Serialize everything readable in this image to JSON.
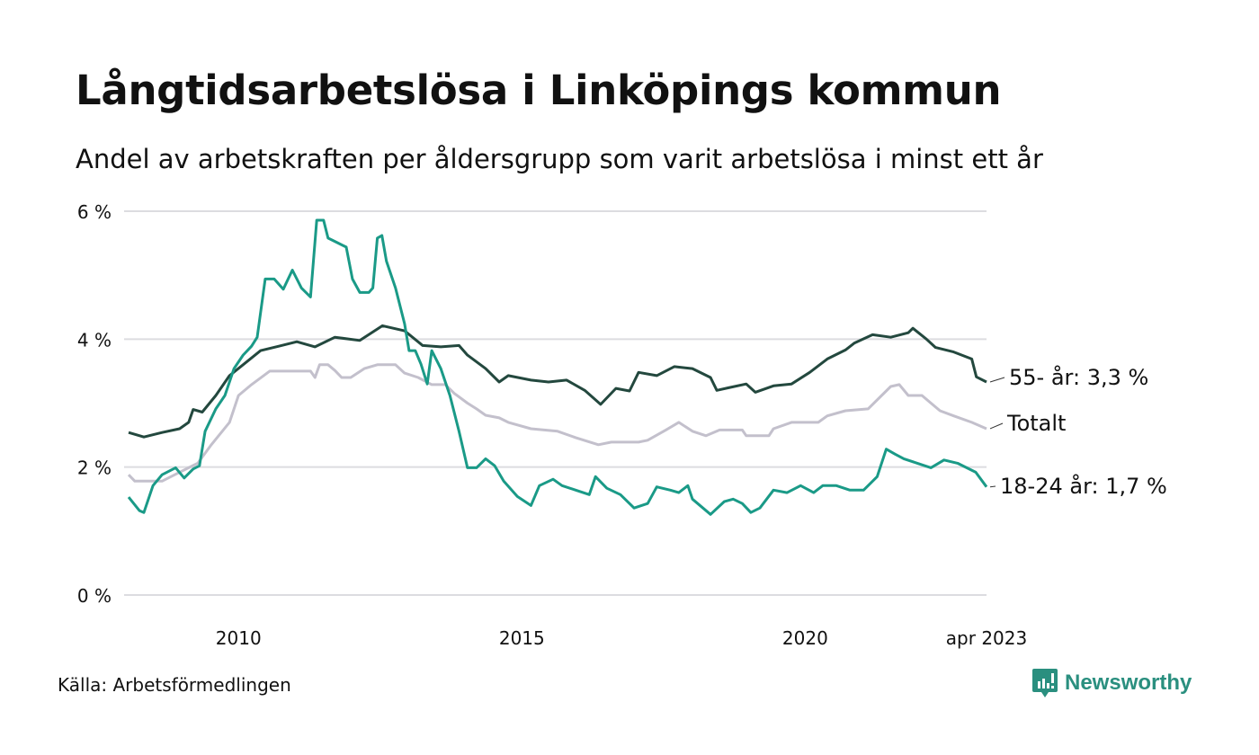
{
  "title": "Långtidsarbetslösa i Linköpings kommun",
  "subtitle": "Andel av arbetskraften per åldersgrupp som varit arbetslösa i minst ett år",
  "source": "Källa: Arbetsförmedlingen",
  "brand": "Newsworthy",
  "colors": {
    "young": "#1a9a87",
    "old": "#23483e",
    "total": "#c3c0cc",
    "grid": "#dcdce0",
    "brand": "#2a8f7f"
  },
  "chart_data": {
    "type": "line",
    "title": "Långtidsarbetslösa i Linköpings kommun",
    "xlabel": "",
    "ylabel": "",
    "xlim": [
      2008.06,
      2023.2
    ],
    "ylim": [
      0,
      6
    ],
    "grid": true,
    "yticks": [
      {
        "value": 0,
        "label": "0 %"
      },
      {
        "value": 2,
        "label": "2 %"
      },
      {
        "value": 4,
        "label": "4 %"
      },
      {
        "value": 6,
        "label": "6 %"
      }
    ],
    "xticks": [
      {
        "value": 2010,
        "label": "2010"
      },
      {
        "value": 2015,
        "label": "2015"
      },
      {
        "value": 2020,
        "label": "2020"
      },
      {
        "value": 2023.2,
        "label": "apr 2023"
      }
    ],
    "legend": "end-of-line labels, right",
    "series": [
      {
        "key": "total",
        "name": "Totalt",
        "end_label": "Totalt",
        "color": "#c3c0cc",
        "points": [
          [
            2008.06,
            1.88
          ],
          [
            2008.17,
            1.78
          ],
          [
            2008.65,
            1.78
          ],
          [
            2008.96,
            1.92
          ],
          [
            2009.12,
            1.99
          ],
          [
            2009.28,
            2.06
          ],
          [
            2009.52,
            2.35
          ],
          [
            2009.84,
            2.7
          ],
          [
            2010.0,
            3.12
          ],
          [
            2010.23,
            3.29
          ],
          [
            2010.55,
            3.5
          ],
          [
            2011.27,
            3.5
          ],
          [
            2011.35,
            3.4
          ],
          [
            2011.43,
            3.6
          ],
          [
            2011.58,
            3.6
          ],
          [
            2011.7,
            3.51
          ],
          [
            2011.82,
            3.4
          ],
          [
            2011.98,
            3.4
          ],
          [
            2012.22,
            3.54
          ],
          [
            2012.45,
            3.6
          ],
          [
            2012.77,
            3.6
          ],
          [
            2012.93,
            3.47
          ],
          [
            2013.17,
            3.4
          ],
          [
            2013.41,
            3.29
          ],
          [
            2013.65,
            3.29
          ],
          [
            2013.81,
            3.15
          ],
          [
            2014.04,
            3.0
          ],
          [
            2014.2,
            2.91
          ],
          [
            2014.36,
            2.81
          ],
          [
            2014.6,
            2.77
          ],
          [
            2014.76,
            2.7
          ],
          [
            2015.16,
            2.6
          ],
          [
            2015.63,
            2.56
          ],
          [
            2015.95,
            2.46
          ],
          [
            2016.35,
            2.35
          ],
          [
            2016.58,
            2.39
          ],
          [
            2017.06,
            2.39
          ],
          [
            2017.22,
            2.42
          ],
          [
            2017.54,
            2.58
          ],
          [
            2017.77,
            2.7
          ],
          [
            2018.01,
            2.56
          ],
          [
            2018.25,
            2.49
          ],
          [
            2018.49,
            2.58
          ],
          [
            2018.89,
            2.58
          ],
          [
            2018.96,
            2.49
          ],
          [
            2019.36,
            2.49
          ],
          [
            2019.44,
            2.6
          ],
          [
            2019.76,
            2.7
          ],
          [
            2020.23,
            2.7
          ],
          [
            2020.39,
            2.8
          ],
          [
            2020.71,
            2.88
          ],
          [
            2021.11,
            2.91
          ],
          [
            2021.51,
            3.26
          ],
          [
            2021.66,
            3.29
          ],
          [
            2021.82,
            3.12
          ],
          [
            2022.06,
            3.12
          ],
          [
            2022.22,
            3.0
          ],
          [
            2022.38,
            2.88
          ],
          [
            2022.62,
            2.8
          ],
          [
            2022.94,
            2.7
          ],
          [
            2023.2,
            2.6
          ]
        ]
      },
      {
        "key": "old",
        "name": "55- år",
        "end_label": "55- år: 3,3 %",
        "color": "#23483e",
        "points": [
          [
            2008.06,
            2.54
          ],
          [
            2008.33,
            2.47
          ],
          [
            2008.65,
            2.54
          ],
          [
            2008.96,
            2.6
          ],
          [
            2009.12,
            2.7
          ],
          [
            2009.2,
            2.9
          ],
          [
            2009.36,
            2.86
          ],
          [
            2009.6,
            3.12
          ],
          [
            2009.84,
            3.43
          ],
          [
            2010.08,
            3.6
          ],
          [
            2010.39,
            3.82
          ],
          [
            2010.71,
            3.89
          ],
          [
            2011.03,
            3.96
          ],
          [
            2011.35,
            3.88
          ],
          [
            2011.7,
            4.03
          ],
          [
            2012.14,
            3.98
          ],
          [
            2012.54,
            4.21
          ],
          [
            2012.93,
            4.13
          ],
          [
            2013.25,
            3.9
          ],
          [
            2013.57,
            3.88
          ],
          [
            2013.89,
            3.9
          ],
          [
            2014.04,
            3.75
          ],
          [
            2014.36,
            3.54
          ],
          [
            2014.6,
            3.33
          ],
          [
            2014.76,
            3.43
          ],
          [
            2015.16,
            3.36
          ],
          [
            2015.47,
            3.33
          ],
          [
            2015.79,
            3.36
          ],
          [
            2016.11,
            3.2
          ],
          [
            2016.39,
            2.98
          ],
          [
            2016.66,
            3.23
          ],
          [
            2016.9,
            3.19
          ],
          [
            2017.06,
            3.48
          ],
          [
            2017.38,
            3.43
          ],
          [
            2017.69,
            3.57
          ],
          [
            2018.01,
            3.54
          ],
          [
            2018.33,
            3.4
          ],
          [
            2018.44,
            3.2
          ],
          [
            2018.65,
            3.24
          ],
          [
            2018.96,
            3.3
          ],
          [
            2019.12,
            3.17
          ],
          [
            2019.44,
            3.27
          ],
          [
            2019.76,
            3.3
          ],
          [
            2020.08,
            3.48
          ],
          [
            2020.39,
            3.69
          ],
          [
            2020.71,
            3.83
          ],
          [
            2020.87,
            3.94
          ],
          [
            2021.19,
            4.07
          ],
          [
            2021.51,
            4.03
          ],
          [
            2021.82,
            4.1
          ],
          [
            2021.9,
            4.17
          ],
          [
            2022.14,
            4.0
          ],
          [
            2022.3,
            3.87
          ],
          [
            2022.62,
            3.8
          ],
          [
            2022.94,
            3.69
          ],
          [
            2023.02,
            3.41
          ],
          [
            2023.2,
            3.33
          ]
        ]
      },
      {
        "key": "young",
        "name": "18-24 år",
        "end_label": "18-24 år: 1,7 %",
        "color": "#1a9a87",
        "points": [
          [
            2008.06,
            1.53
          ],
          [
            2008.25,
            1.32
          ],
          [
            2008.33,
            1.29
          ],
          [
            2008.49,
            1.71
          ],
          [
            2008.65,
            1.88
          ],
          [
            2008.89,
            1.99
          ],
          [
            2009.04,
            1.83
          ],
          [
            2009.2,
            1.97
          ],
          [
            2009.31,
            2.02
          ],
          [
            2009.41,
            2.56
          ],
          [
            2009.6,
            2.91
          ],
          [
            2009.76,
            3.12
          ],
          [
            2009.92,
            3.54
          ],
          [
            2010.08,
            3.75
          ],
          [
            2010.23,
            3.89
          ],
          [
            2010.33,
            4.03
          ],
          [
            2010.47,
            4.94
          ],
          [
            2010.63,
            4.94
          ],
          [
            2010.79,
            4.78
          ],
          [
            2010.95,
            5.08
          ],
          [
            2011.11,
            4.8
          ],
          [
            2011.27,
            4.66
          ],
          [
            2011.38,
            5.86
          ],
          [
            2011.5,
            5.86
          ],
          [
            2011.58,
            5.58
          ],
          [
            2011.74,
            5.51
          ],
          [
            2011.9,
            5.44
          ],
          [
            2012.01,
            4.94
          ],
          [
            2012.14,
            4.73
          ],
          [
            2012.3,
            4.73
          ],
          [
            2012.37,
            4.8
          ],
          [
            2012.45,
            5.58
          ],
          [
            2012.53,
            5.62
          ],
          [
            2012.61,
            5.22
          ],
          [
            2012.77,
            4.8
          ],
          [
            2012.93,
            4.24
          ],
          [
            2013.01,
            3.82
          ],
          [
            2013.12,
            3.82
          ],
          [
            2013.22,
            3.61
          ],
          [
            2013.33,
            3.3
          ],
          [
            2013.41,
            3.82
          ],
          [
            2013.57,
            3.54
          ],
          [
            2013.73,
            3.12
          ],
          [
            2013.89,
            2.56
          ],
          [
            2014.04,
            1.99
          ],
          [
            2014.2,
            1.99
          ],
          [
            2014.36,
            2.13
          ],
          [
            2014.52,
            2.02
          ],
          [
            2014.68,
            1.78
          ],
          [
            2014.92,
            1.54
          ],
          [
            2015.16,
            1.4
          ],
          [
            2015.31,
            1.71
          ],
          [
            2015.55,
            1.81
          ],
          [
            2015.71,
            1.71
          ],
          [
            2015.95,
            1.64
          ],
          [
            2016.19,
            1.57
          ],
          [
            2016.3,
            1.85
          ],
          [
            2016.5,
            1.67
          ],
          [
            2016.74,
            1.57
          ],
          [
            2016.98,
            1.36
          ],
          [
            2017.22,
            1.43
          ],
          [
            2017.38,
            1.69
          ],
          [
            2017.62,
            1.64
          ],
          [
            2017.77,
            1.6
          ],
          [
            2017.93,
            1.71
          ],
          [
            2018.01,
            1.5
          ],
          [
            2018.33,
            1.26
          ],
          [
            2018.57,
            1.46
          ],
          [
            2018.73,
            1.5
          ],
          [
            2018.89,
            1.43
          ],
          [
            2019.04,
            1.29
          ],
          [
            2019.2,
            1.36
          ],
          [
            2019.44,
            1.64
          ],
          [
            2019.68,
            1.6
          ],
          [
            2019.92,
            1.71
          ],
          [
            2020.15,
            1.6
          ],
          [
            2020.31,
            1.71
          ],
          [
            2020.55,
            1.71
          ],
          [
            2020.79,
            1.64
          ],
          [
            2021.03,
            1.64
          ],
          [
            2021.27,
            1.85
          ],
          [
            2021.43,
            2.28
          ],
          [
            2021.59,
            2.2
          ],
          [
            2021.74,
            2.13
          ],
          [
            2021.98,
            2.06
          ],
          [
            2022.22,
            1.99
          ],
          [
            2022.45,
            2.11
          ],
          [
            2022.69,
            2.06
          ],
          [
            2022.85,
            1.99
          ],
          [
            2023.01,
            1.92
          ],
          [
            2023.2,
            1.69
          ]
        ]
      }
    ]
  }
}
